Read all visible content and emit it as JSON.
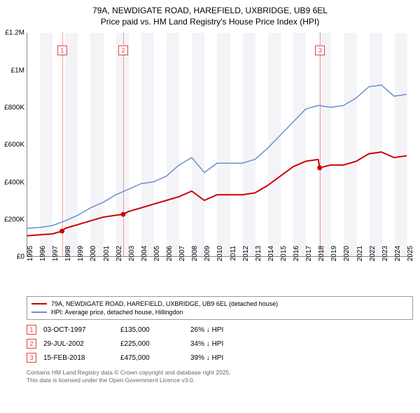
{
  "title_line1": "79A, NEWDIGATE ROAD, HAREFIELD, UXBRIDGE, UB9 6EL",
  "title_line2": "Price paid vs. HM Land Registry's House Price Index (HPI)",
  "chart": {
    "type": "line",
    "xlim": [
      1995,
      2025.5
    ],
    "ylim": [
      0,
      1200000
    ],
    "ytick_step": 200000,
    "yticks": [
      "£0",
      "£200K",
      "£400K",
      "£600K",
      "£800K",
      "£1M",
      "£1.2M"
    ],
    "xticks": [
      1995,
      1996,
      1997,
      1998,
      1999,
      2000,
      2001,
      2002,
      2003,
      2004,
      2005,
      2006,
      2007,
      2008,
      2009,
      2010,
      2011,
      2012,
      2013,
      2014,
      2015,
      2016,
      2017,
      2018,
      2019,
      2020,
      2021,
      2022,
      2023,
      2024,
      2025
    ],
    "background_color": "#ffffff",
    "band_color": "#f4f4f8",
    "series": {
      "price_paid": {
        "color": "#cc0000",
        "width": 2,
        "points": [
          [
            1995,
            110000
          ],
          [
            1996,
            115000
          ],
          [
            1997,
            120000
          ],
          [
            1997.75,
            135000
          ],
          [
            1998,
            150000
          ],
          [
            1999,
            170000
          ],
          [
            2000,
            190000
          ],
          [
            2001,
            210000
          ],
          [
            2002,
            220000
          ],
          [
            2002.58,
            225000
          ],
          [
            2003,
            240000
          ],
          [
            2004,
            260000
          ],
          [
            2005,
            280000
          ],
          [
            2006,
            300000
          ],
          [
            2007,
            320000
          ],
          [
            2008,
            350000
          ],
          [
            2009,
            300000
          ],
          [
            2010,
            330000
          ],
          [
            2011,
            330000
          ],
          [
            2012,
            330000
          ],
          [
            2013,
            340000
          ],
          [
            2014,
            380000
          ],
          [
            2015,
            430000
          ],
          [
            2016,
            480000
          ],
          [
            2017,
            510000
          ],
          [
            2018,
            520000
          ],
          [
            2018.12,
            475000
          ],
          [
            2019,
            490000
          ],
          [
            2020,
            490000
          ],
          [
            2021,
            510000
          ],
          [
            2022,
            550000
          ],
          [
            2023,
            560000
          ],
          [
            2024,
            530000
          ],
          [
            2025,
            540000
          ]
        ],
        "markers": [
          [
            1997.75,
            135000
          ],
          [
            2002.58,
            225000
          ],
          [
            2018.12,
            475000
          ]
        ]
      },
      "hpi": {
        "color": "#6b8fc9",
        "width": 1.5,
        "points": [
          [
            1995,
            150000
          ],
          [
            1996,
            155000
          ],
          [
            1997,
            165000
          ],
          [
            1998,
            190000
          ],
          [
            1999,
            220000
          ],
          [
            2000,
            260000
          ],
          [
            2001,
            290000
          ],
          [
            2002,
            330000
          ],
          [
            2003,
            360000
          ],
          [
            2004,
            390000
          ],
          [
            2005,
            400000
          ],
          [
            2006,
            430000
          ],
          [
            2007,
            490000
          ],
          [
            2008,
            530000
          ],
          [
            2009,
            450000
          ],
          [
            2010,
            500000
          ],
          [
            2011,
            500000
          ],
          [
            2012,
            500000
          ],
          [
            2013,
            520000
          ],
          [
            2014,
            580000
          ],
          [
            2015,
            650000
          ],
          [
            2016,
            720000
          ],
          [
            2017,
            790000
          ],
          [
            2018,
            810000
          ],
          [
            2019,
            800000
          ],
          [
            2020,
            810000
          ],
          [
            2021,
            850000
          ],
          [
            2022,
            910000
          ],
          [
            2023,
            920000
          ],
          [
            2024,
            860000
          ],
          [
            2025,
            870000
          ]
        ]
      }
    },
    "sale_markers": [
      {
        "n": "1",
        "x": 1997.75
      },
      {
        "n": "2",
        "x": 2002.58
      },
      {
        "n": "3",
        "x": 2018.12
      }
    ]
  },
  "legend": {
    "items": [
      {
        "color": "#cc0000",
        "label": "79A, NEWDIGATE ROAD, HAREFIELD, UXBRIDGE, UB9 6EL (detached house)"
      },
      {
        "color": "#6b8fc9",
        "label": "HPI: Average price, detached house, Hillingdon"
      }
    ]
  },
  "sales": [
    {
      "n": "1",
      "date": "03-OCT-1997",
      "price": "£135,000",
      "diff": "26% ↓ HPI"
    },
    {
      "n": "2",
      "date": "29-JUL-2002",
      "price": "£225,000",
      "diff": "34% ↓ HPI"
    },
    {
      "n": "3",
      "date": "15-FEB-2018",
      "price": "£475,000",
      "diff": "39% ↓ HPI"
    }
  ],
  "footer_line1": "Contains HM Land Registry data © Crown copyright and database right 2025.",
  "footer_line2": "This data is licensed under the Open Government Licence v3.0."
}
